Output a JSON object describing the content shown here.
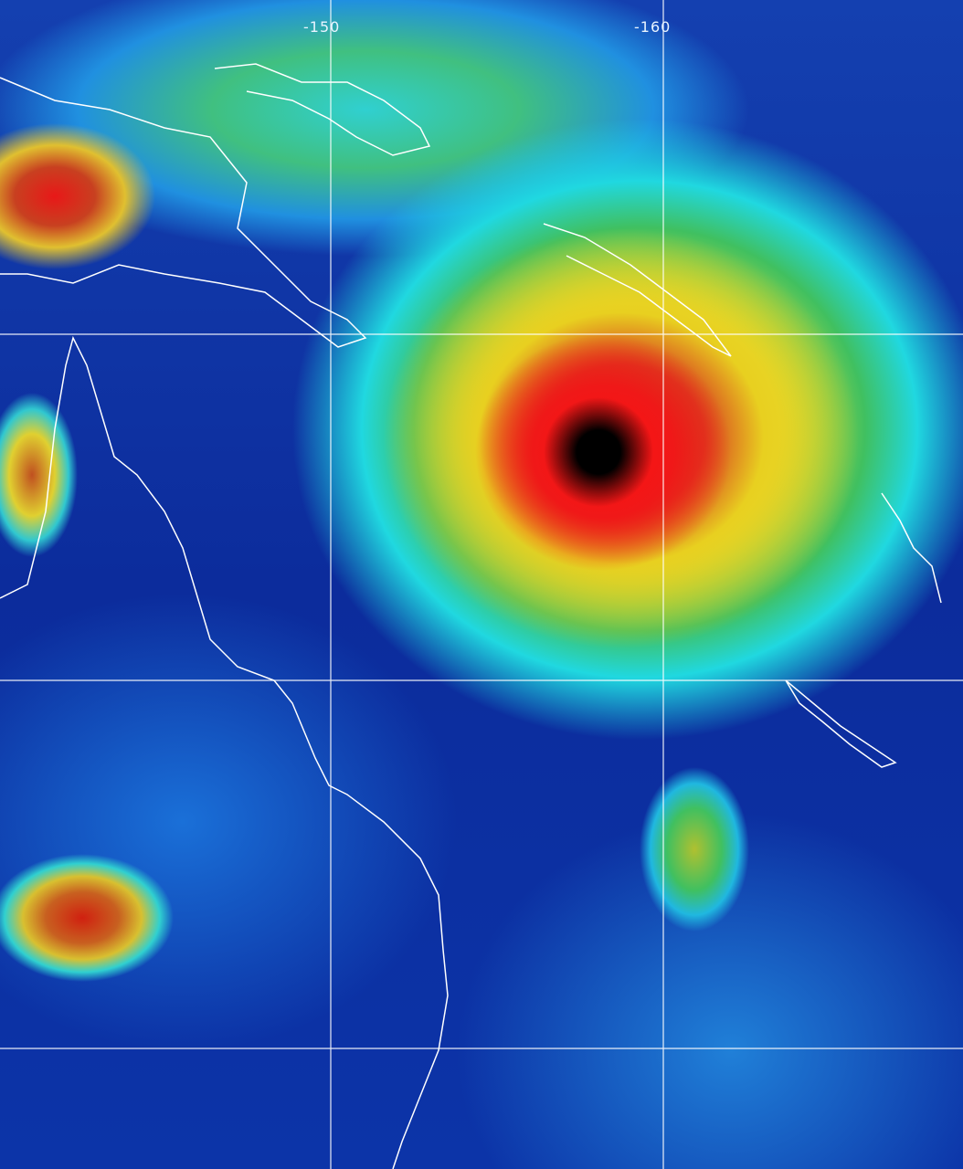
{
  "map": {
    "type": "enhanced infrared satellite image",
    "longitude_labels": [
      "-150",
      "-160"
    ],
    "gridline_color": "#ffffff",
    "coastline_color": "#ffffff",
    "color_scale": {
      "cold_tops": "#000000",
      "very_cold": "#ff1010",
      "cold": "#c83018",
      "mid": "#e8e030",
      "warm_cloud": "#20d8e0",
      "clear_sea": "#0c2c9c"
    },
    "features": [
      "tropical-cyclone",
      "coastline",
      "latitude-longitude-grid"
    ]
  }
}
